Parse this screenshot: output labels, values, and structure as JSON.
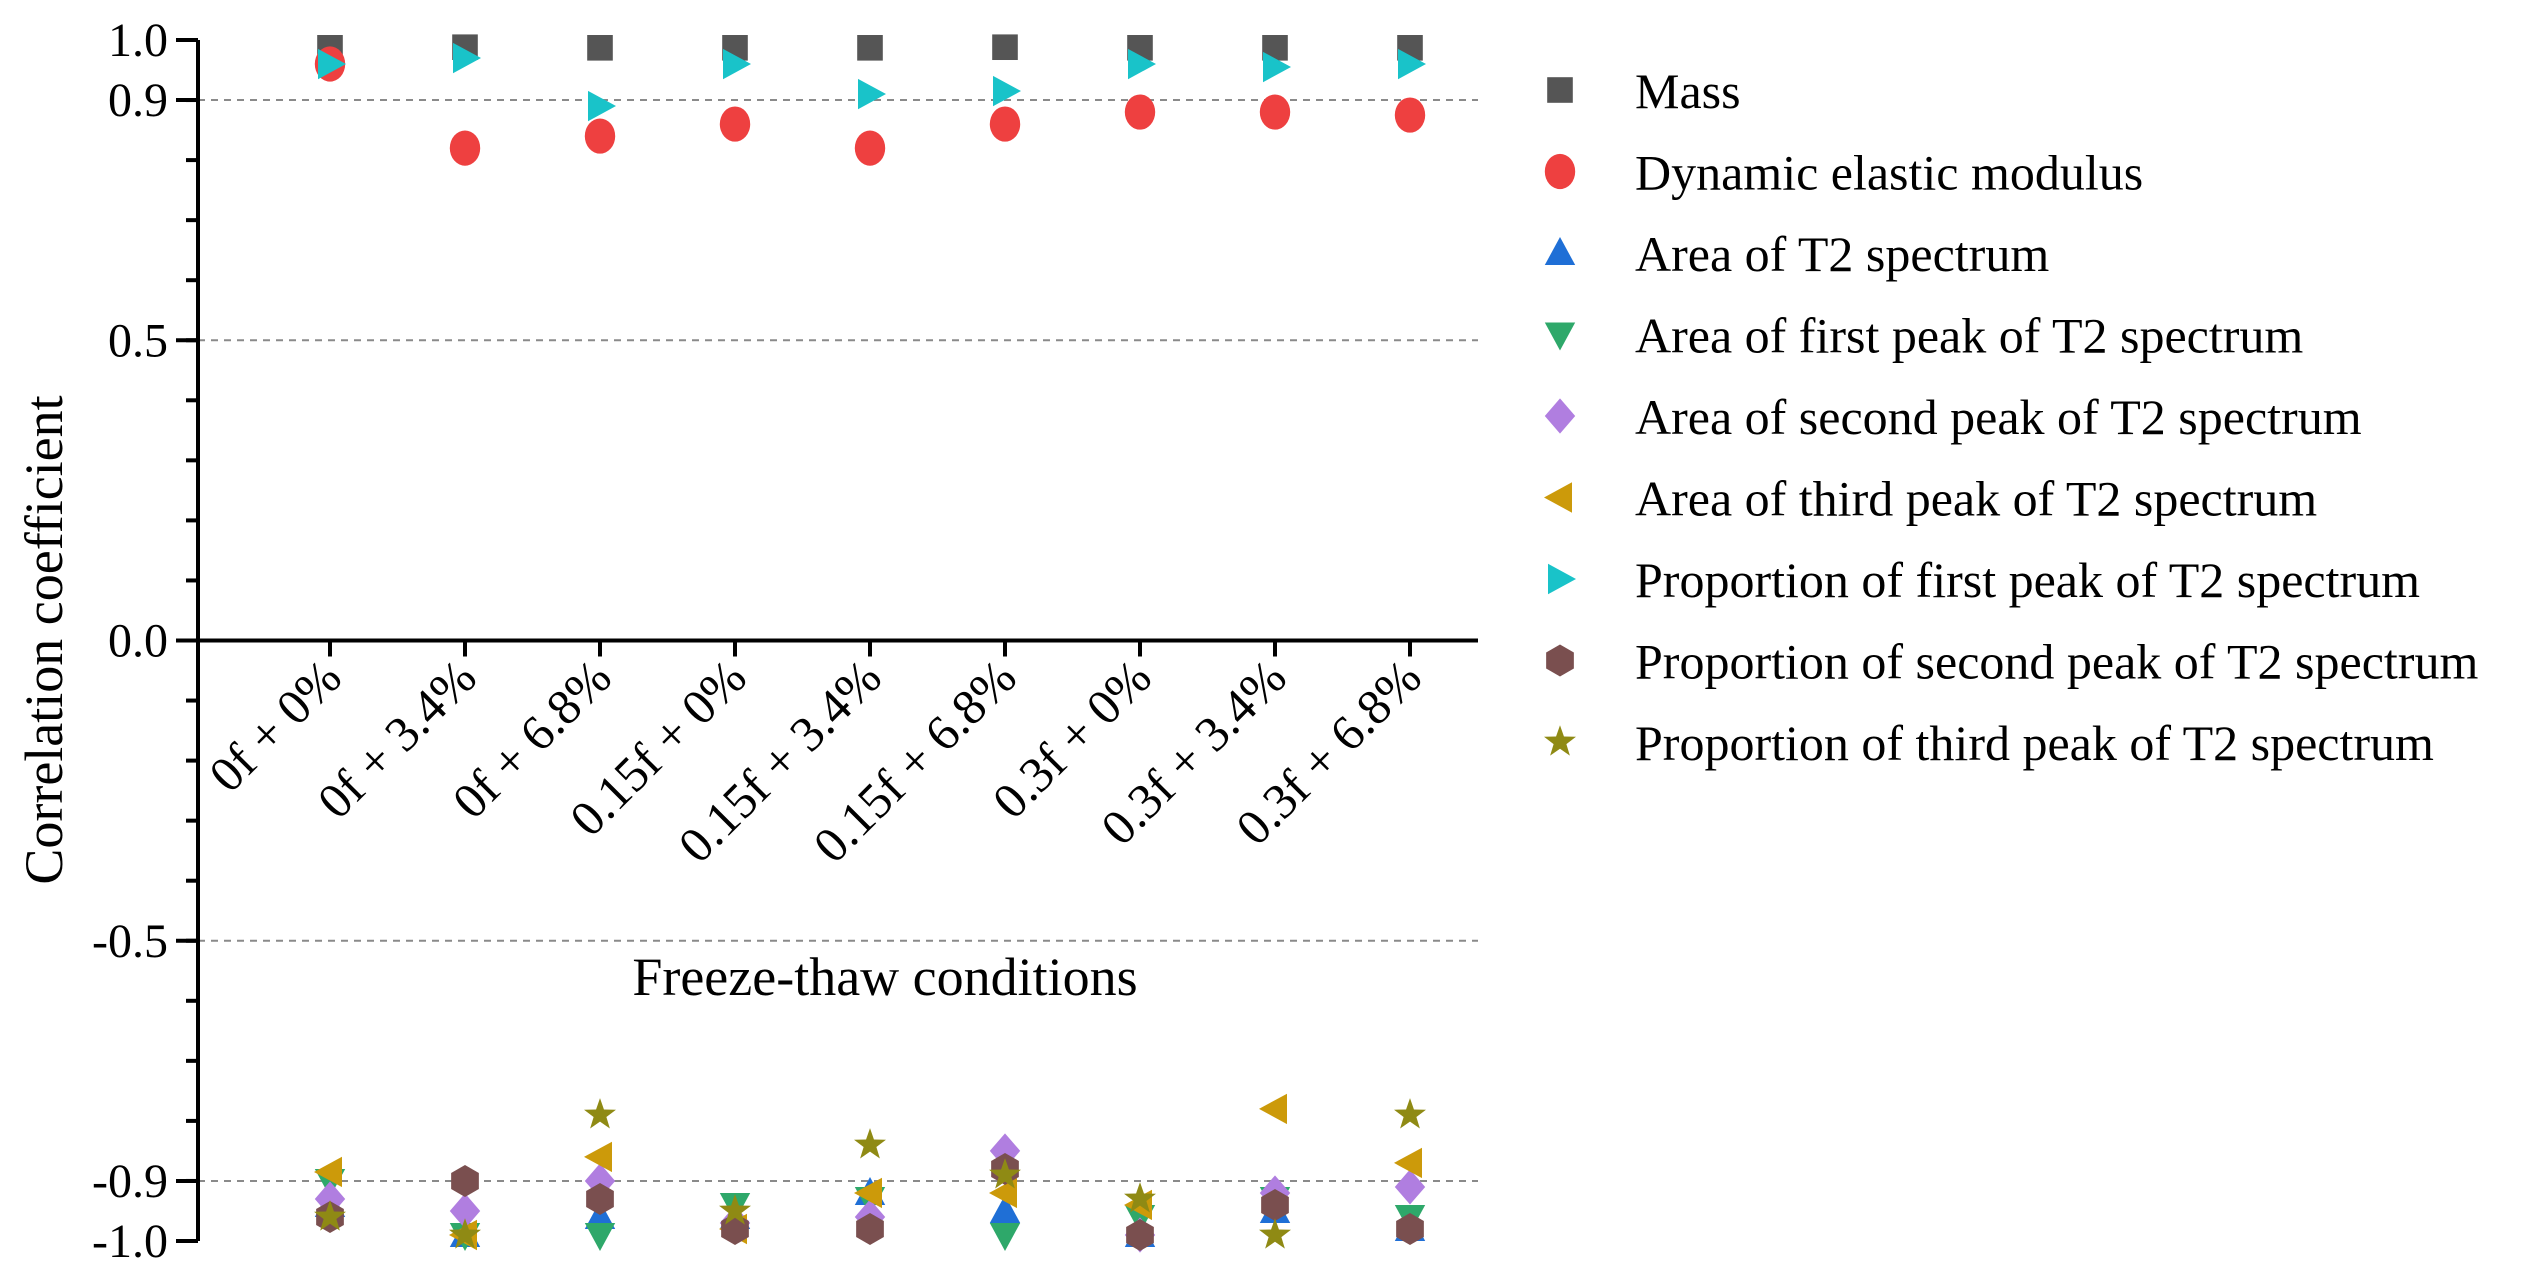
{
  "chart_data": {
    "type": "scatter",
    "xlabel": "Freeze-thaw conditions",
    "ylabel": "Correlation coefficient",
    "ylim": [
      -1.0,
      1.0
    ],
    "yticks": [
      "1.0",
      "0.9",
      "0.5",
      "0.0",
      "-0.5",
      "-0.9",
      "-1.0"
    ],
    "ytick_values": [
      1.0,
      0.9,
      0.5,
      0.0,
      -0.5,
      -0.9,
      -1.0
    ],
    "gridlines_at": [
      0.9,
      0.5,
      -0.5,
      -0.9
    ],
    "categories": [
      "0f + 0%",
      "0f + 3.4%",
      "0f + 6.8%",
      "0.15f + 0%",
      "0.15f + 3.4%",
      "0.15f + 6.8%",
      "0.3f + 0%",
      "0.3f + 3.4%",
      "0.3f + 6.8%"
    ],
    "legend_position": "right",
    "series": [
      {
        "name": "Mass",
        "marker": "square",
        "color": "#555555",
        "values": [
          0.987,
          0.988,
          0.987,
          0.987,
          0.987,
          0.988,
          0.987,
          0.987,
          0.987
        ]
      },
      {
        "name": "Dynamic elastic modulus",
        "marker": "circle",
        "color": "#ee4040",
        "values": [
          0.96,
          0.82,
          0.84,
          0.86,
          0.82,
          0.86,
          0.88,
          0.88,
          0.875
        ]
      },
      {
        "name": "Area of T2 spectrum",
        "marker": "triangle-up",
        "color": "#1f6fd6",
        "values": [
          -0.94,
          -0.99,
          -0.96,
          -0.96,
          -0.92,
          -0.95,
          -0.99,
          -0.95,
          -0.98
        ]
      },
      {
        "name": "Area of first peak of T2 spectrum",
        "marker": "triangle-down",
        "color": "#2ea86a",
        "values": [
          -0.9,
          -0.99,
          -0.99,
          -0.94,
          -0.93,
          -0.99,
          -0.96,
          -0.93,
          -0.96
        ]
      },
      {
        "name": "Area of second peak of T2 spectrum",
        "marker": "diamond",
        "color": "#b07ee0",
        "values": [
          -0.93,
          -0.95,
          -0.9,
          -0.97,
          -0.96,
          -0.85,
          -0.99,
          -0.92,
          -0.91
        ]
      },
      {
        "name": "Area of third peak of T2 spectrum",
        "marker": "triangle-left",
        "color": "#cc9a0a",
        "values": [
          -0.885,
          -0.99,
          -0.86,
          -0.98,
          -0.92,
          -0.92,
          -0.94,
          -0.78,
          -0.87
        ]
      },
      {
        "name": "Proportion of first peak of T2 spectrum",
        "marker": "triangle-right",
        "color": "#19c3c9",
        "values": [
          0.96,
          0.97,
          0.89,
          0.96,
          0.91,
          0.915,
          0.96,
          0.955,
          0.96
        ]
      },
      {
        "name": "Proportion of second peak of T2 spectrum",
        "marker": "hexagon",
        "color": "#7a4f4f",
        "values": [
          -0.96,
          -0.9,
          -0.93,
          -0.98,
          -0.98,
          -0.88,
          -0.99,
          -0.94,
          -0.98
        ]
      },
      {
        "name": "Proportion of third peak of T2 spectrum",
        "marker": "star",
        "color": "#8f8a14",
        "values": [
          -0.96,
          -0.99,
          -0.79,
          -0.95,
          -0.84,
          -0.89,
          -0.93,
          -0.99,
          -0.79
        ]
      }
    ]
  }
}
